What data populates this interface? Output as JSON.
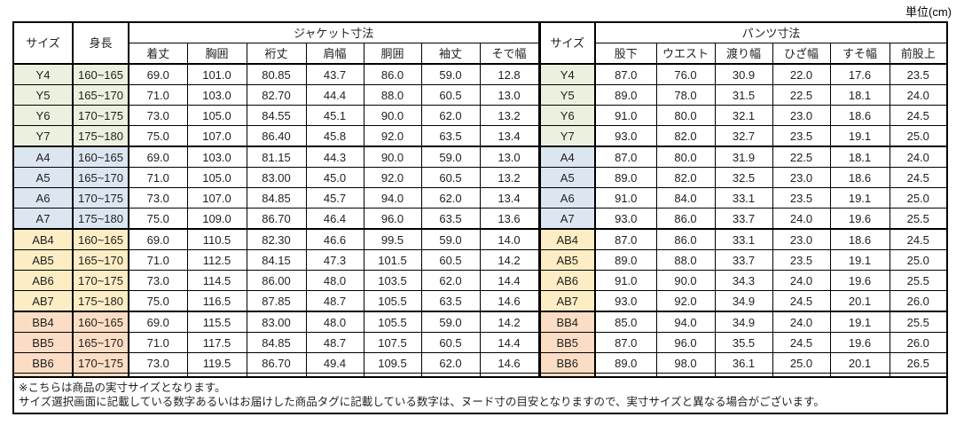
{
  "unit_label": "単位(cm)",
  "colors": {
    "border": "#000000",
    "text": "#1f1f1f",
    "header_bg": "#ffffff",
    "group_Y": "#ebf1de",
    "group_A": "#dce6f1",
    "group_AB": "#fcedc4",
    "group_BB": "#fbddc5"
  },
  "table": {
    "size_header": "サイズ",
    "height_header": "身長",
    "jacket_group_header": "ジャケット寸法",
    "jacket_columns": [
      "着丈",
      "胸囲",
      "裄丈",
      "肩幅",
      "胴囲",
      "袖丈",
      "そで幅"
    ],
    "pants_size_header": "サイズ",
    "pants_group_header": "パンツ寸法",
    "pants_columns": [
      "股下",
      "ウエスト",
      "渡り幅",
      "ひざ幅",
      "すそ幅",
      "前股上"
    ],
    "rows": [
      {
        "size": "Y4",
        "group": "Y",
        "height": "160~165",
        "jacket": [
          "69.0",
          "101.0",
          "80.85",
          "43.7",
          "86.0",
          "59.0",
          "12.8"
        ],
        "pants": [
          "87.0",
          "76.0",
          "30.9",
          "22.0",
          "17.6",
          "23.5"
        ]
      },
      {
        "size": "Y5",
        "group": "Y",
        "height": "165~170",
        "jacket": [
          "71.0",
          "103.0",
          "82.70",
          "44.4",
          "88.0",
          "60.5",
          "13.0"
        ],
        "pants": [
          "89.0",
          "78.0",
          "31.5",
          "22.5",
          "18.1",
          "24.0"
        ]
      },
      {
        "size": "Y6",
        "group": "Y",
        "height": "170~175",
        "jacket": [
          "73.0",
          "105.0",
          "84.55",
          "45.1",
          "90.0",
          "62.0",
          "13.2"
        ],
        "pants": [
          "91.0",
          "80.0",
          "32.1",
          "23.0",
          "18.6",
          "24.5"
        ]
      },
      {
        "size": "Y7",
        "group": "Y",
        "height": "175~180",
        "jacket": [
          "75.0",
          "107.0",
          "86.40",
          "45.8",
          "92.0",
          "63.5",
          "13.4"
        ],
        "pants": [
          "93.0",
          "82.0",
          "32.7",
          "23.5",
          "19.1",
          "25.0"
        ]
      },
      {
        "size": "A4",
        "group": "A",
        "height": "160~165",
        "jacket": [
          "69.0",
          "103.0",
          "81.15",
          "44.3",
          "90.0",
          "59.0",
          "13.0"
        ],
        "pants": [
          "87.0",
          "80.0",
          "31.9",
          "22.5",
          "18.1",
          "24.0"
        ]
      },
      {
        "size": "A5",
        "group": "A",
        "height": "165~170",
        "jacket": [
          "71.0",
          "105.0",
          "83.00",
          "45.0",
          "92.0",
          "60.5",
          "13.2"
        ],
        "pants": [
          "89.0",
          "82.0",
          "32.5",
          "23.0",
          "18.6",
          "24.5"
        ]
      },
      {
        "size": "A6",
        "group": "A",
        "height": "170~175",
        "jacket": [
          "73.0",
          "107.0",
          "84.85",
          "45.7",
          "94.0",
          "62.0",
          "13.4"
        ],
        "pants": [
          "91.0",
          "84.0",
          "33.1",
          "23.5",
          "19.1",
          "25.0"
        ]
      },
      {
        "size": "A7",
        "group": "A",
        "height": "175~180",
        "jacket": [
          "75.0",
          "109.0",
          "86.70",
          "46.4",
          "96.0",
          "63.5",
          "13.6"
        ],
        "pants": [
          "93.0",
          "86.0",
          "33.7",
          "24.0",
          "19.6",
          "25.5"
        ]
      },
      {
        "size": "AB4",
        "group": "AB",
        "height": "160~165",
        "jacket": [
          "69.0",
          "110.5",
          "82.30",
          "46.6",
          "99.5",
          "59.0",
          "14.0"
        ],
        "pants": [
          "87.0",
          "86.0",
          "33.1",
          "23.0",
          "18.6",
          "24.5"
        ]
      },
      {
        "size": "AB5",
        "group": "AB",
        "height": "165~170",
        "jacket": [
          "71.0",
          "112.5",
          "84.15",
          "47.3",
          "101.5",
          "60.5",
          "14.2"
        ],
        "pants": [
          "89.0",
          "88.0",
          "33.7",
          "23.5",
          "19.1",
          "25.0"
        ]
      },
      {
        "size": "AB6",
        "group": "AB",
        "height": "170~175",
        "jacket": [
          "73.0",
          "114.5",
          "86.00",
          "48.0",
          "103.5",
          "62.0",
          "14.4"
        ],
        "pants": [
          "91.0",
          "90.0",
          "34.3",
          "24.0",
          "19.6",
          "25.5"
        ]
      },
      {
        "size": "AB7",
        "group": "AB",
        "height": "175~180",
        "jacket": [
          "75.0",
          "116.5",
          "87.85",
          "48.7",
          "105.5",
          "63.5",
          "14.6"
        ],
        "pants": [
          "93.0",
          "92.0",
          "34.9",
          "24.5",
          "20.1",
          "26.0"
        ]
      },
      {
        "size": "BB4",
        "group": "BB",
        "height": "160~165",
        "jacket": [
          "69.0",
          "115.5",
          "83.00",
          "48.0",
          "105.5",
          "59.0",
          "14.2"
        ],
        "pants": [
          "85.0",
          "94.0",
          "34.9",
          "24.0",
          "19.1",
          "25.5"
        ]
      },
      {
        "size": "BB5",
        "group": "BB",
        "height": "165~170",
        "jacket": [
          "71.0",
          "117.5",
          "84.85",
          "48.7",
          "107.5",
          "60.5",
          "14.4"
        ],
        "pants": [
          "87.0",
          "96.0",
          "35.5",
          "24.5",
          "19.6",
          "26.0"
        ]
      },
      {
        "size": "BB6",
        "group": "BB",
        "height": "170~175",
        "jacket": [
          "73.0",
          "119.5",
          "86.70",
          "49.4",
          "109.5",
          "62.0",
          "14.6"
        ],
        "pants": [
          "89.0",
          "98.0",
          "36.1",
          "25.0",
          "20.1",
          "26.5"
        ]
      },
      {
        "size": "BB7",
        "group": "BB",
        "height": "175~180",
        "jacket": [
          "75.0",
          "121.5",
          "88.55",
          "50.1",
          "111.5",
          "63.5",
          "14.8"
        ],
        "pants": [
          "93.0",
          "100.0",
          "36.7",
          "25.5",
          "20.6",
          "27.0"
        ]
      }
    ]
  },
  "notes": [
    "※こちらは商品の実寸サイズとなります。",
    "サイズ選択画面に記載している数字あるいはお届けした商品タグに記載している数字は、ヌード寸の目安となりますので、実寸サイズと異なる場合がございます。"
  ]
}
